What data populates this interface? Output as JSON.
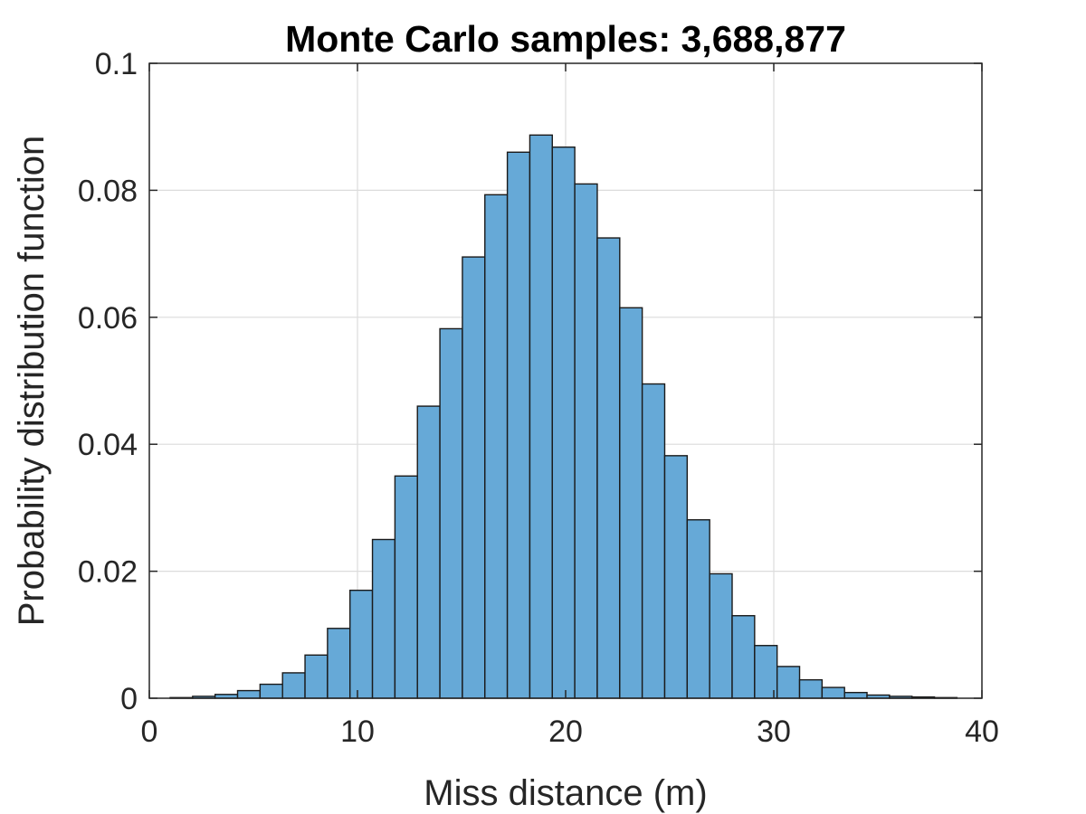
{
  "chart_data": {
    "type": "bar",
    "subtype": "histogram",
    "title": "Monte Carlo samples: 3,688,877",
    "xlabel": "Miss distance (m)",
    "ylabel": "Probability distribution function",
    "xlim": [
      0,
      40
    ],
    "ylim": [
      0,
      0.1
    ],
    "xticks": [
      0,
      10,
      20,
      30,
      40
    ],
    "xtick_labels": [
      "0",
      "10",
      "20",
      "30",
      "40"
    ],
    "yticks": [
      0,
      0.02,
      0.04,
      0.06,
      0.08,
      0.1
    ],
    "ytick_labels": [
      "0",
      "0.02",
      "0.04",
      "0.06",
      "0.08",
      "0.1"
    ],
    "grid": true,
    "bar_color": "#66a9d7",
    "edge_color": "#1a1a1a",
    "bin_edges": [
      1.0,
      2.08,
      3.16,
      4.24,
      5.32,
      6.4,
      7.48,
      8.56,
      9.64,
      10.72,
      11.8,
      12.88,
      13.96,
      15.04,
      16.12,
      17.2,
      18.28,
      19.36,
      20.44,
      21.52,
      22.6,
      23.68,
      24.76,
      25.84,
      26.92,
      28.0,
      29.08,
      30.16,
      31.24,
      32.32,
      33.4,
      34.48,
      35.56,
      36.64,
      37.72,
      38.8
    ],
    "values": [
      0.0001,
      0.0003,
      0.0006,
      0.0012,
      0.0022,
      0.004,
      0.0068,
      0.011,
      0.017,
      0.025,
      0.035,
      0.046,
      0.0582,
      0.0695,
      0.0793,
      0.086,
      0.0887,
      0.0868,
      0.081,
      0.0725,
      0.0615,
      0.0495,
      0.0382,
      0.0281,
      0.0196,
      0.013,
      0.0083,
      0.005,
      0.0029,
      0.0017,
      0.0009,
      0.0005,
      0.0003,
      0.0002,
      0.0001
    ]
  }
}
